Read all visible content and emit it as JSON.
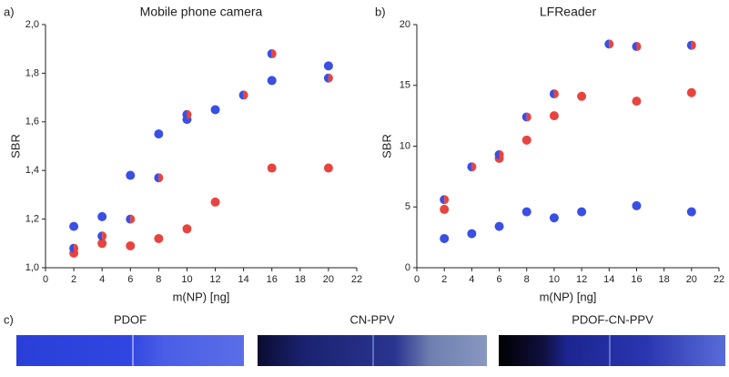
{
  "chart_data": [
    {
      "type": "scatter",
      "panel_label": "a)",
      "title": "Mobile phone camera",
      "x_label": "m(NP) [ng]",
      "y_label": "SBR",
      "xlim": [
        0,
        22
      ],
      "xticks": [
        0,
        2,
        4,
        6,
        8,
        10,
        12,
        14,
        16,
        18,
        20,
        22
      ],
      "ylim": [
        1.0,
        2.0
      ],
      "yticks": [
        {
          "value": 1.0,
          "label": "1,0"
        },
        {
          "value": 1.2,
          "label": "1,2"
        },
        {
          "value": 1.4,
          "label": "1,4"
        },
        {
          "value": 1.6,
          "label": "1,6"
        },
        {
          "value": 1.8,
          "label": "1,8"
        },
        {
          "value": 2.0,
          "label": "2,0"
        }
      ],
      "series": [
        {
          "colors": [
            "#3a4fe4"
          ],
          "x": [
            2,
            4,
            6,
            8,
            10,
            12,
            16,
            20
          ],
          "values": [
            1.17,
            1.21,
            1.38,
            1.55,
            1.61,
            1.65,
            1.77,
            1.83
          ]
        },
        {
          "colors": [
            "#e8443f"
          ],
          "x": [
            2,
            4,
            6,
            8,
            10,
            12,
            16,
            20
          ],
          "values": [
            1.06,
            1.1,
            1.09,
            1.12,
            1.16,
            1.27,
            1.41,
            1.41
          ]
        },
        {
          "colors": [
            "#3a4fe4",
            "#e8443f"
          ],
          "x": [
            2,
            4,
            6,
            8,
            10,
            14,
            16,
            20
          ],
          "values": [
            1.08,
            1.13,
            1.2,
            1.37,
            1.63,
            1.71,
            1.88,
            1.78
          ]
        }
      ]
    },
    {
      "type": "scatter",
      "panel_label": "b)",
      "title": "LFReader",
      "x_label": "m(NP) [ng]",
      "y_label": "SBR",
      "xlim": [
        0,
        22
      ],
      "xticks": [
        0,
        2,
        4,
        6,
        8,
        10,
        12,
        14,
        16,
        18,
        20,
        22
      ],
      "ylim": [
        0,
        20
      ],
      "yticks": [
        0,
        5,
        10,
        15,
        20
      ],
      "series": [
        {
          "colors": [
            "#3a4fe4"
          ],
          "x": [
            2,
            4,
            6,
            8,
            10,
            12,
            16,
            20
          ],
          "values": [
            2.4,
            2.8,
            3.4,
            4.6,
            4.1,
            4.6,
            5.1,
            4.6
          ]
        },
        {
          "colors": [
            "#e8443f"
          ],
          "x": [
            2,
            6,
            8,
            10,
            12,
            16,
            20
          ],
          "values": [
            4.8,
            9.0,
            10.5,
            12.5,
            14.1,
            13.7,
            14.4
          ]
        },
        {
          "colors": [
            "#3a4fe4",
            "#e8443f"
          ],
          "x": [
            2,
            4,
            6,
            8,
            10,
            14,
            16,
            20
          ],
          "values": [
            5.6,
            8.3,
            9.3,
            12.4,
            14.3,
            18.4,
            18.2,
            18.3
          ]
        }
      ]
    }
  ],
  "panel_c": {
    "label": "c)",
    "strips": [
      "PDOF",
      "CN-PPV",
      "PDOF-CN-PPV"
    ]
  }
}
